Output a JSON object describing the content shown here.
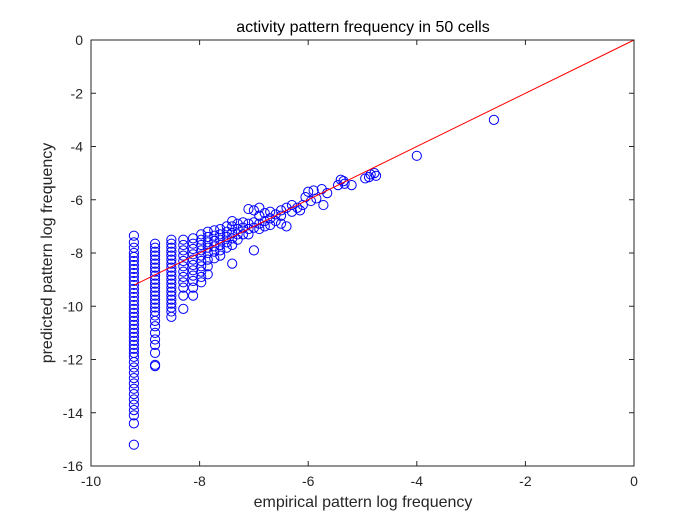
{
  "chart_data": {
    "type": "scatter",
    "title": "activity pattern frequency in 50 cells",
    "xlabel": "empirical pattern log frequency",
    "ylabel": "predicted pattern log frequency",
    "xlim": [
      -10,
      0
    ],
    "ylim": [
      -16,
      0
    ],
    "xticks": [
      -10,
      -8,
      -6,
      -4,
      -2,
      0
    ],
    "yticks": [
      -16,
      -14,
      -12,
      -10,
      -8,
      -6,
      -4,
      -2,
      0
    ],
    "xtick_labels": [
      "-10",
      "-8",
      "-6",
      "-4",
      "-2",
      "0"
    ],
    "ytick_labels": [
      "-16",
      "-14",
      "-12",
      "-10",
      "-8",
      "-6",
      "-4",
      "-2",
      "0"
    ],
    "grid": false,
    "marker_color": "#0000ff",
    "line_color": "#ff0000",
    "reference_line": {
      "x": [
        -9.2,
        0
      ],
      "y": [
        -9.2,
        0
      ]
    },
    "points": [
      [
        -9.21,
        -7.35
      ],
      [
        -9.21,
        -7.6
      ],
      [
        -9.21,
        -7.8
      ],
      [
        -9.21,
        -8.0
      ],
      [
        -9.21,
        -8.15
      ],
      [
        -9.21,
        -8.3
      ],
      [
        -9.21,
        -8.45
      ],
      [
        -9.21,
        -8.6
      ],
      [
        -9.21,
        -8.75
      ],
      [
        -9.21,
        -8.9
      ],
      [
        -9.21,
        -9.05
      ],
      [
        -9.21,
        -9.2
      ],
      [
        -9.21,
        -9.35
      ],
      [
        -9.21,
        -9.5
      ],
      [
        -9.21,
        -9.65
      ],
      [
        -9.21,
        -9.8
      ],
      [
        -9.21,
        -9.95
      ],
      [
        -9.21,
        -10.1
      ],
      [
        -9.21,
        -10.25
      ],
      [
        -9.21,
        -10.4
      ],
      [
        -9.21,
        -10.55
      ],
      [
        -9.21,
        -10.7
      ],
      [
        -9.21,
        -10.85
      ],
      [
        -9.21,
        -11.0
      ],
      [
        -9.21,
        -11.15
      ],
      [
        -9.21,
        -11.3
      ],
      [
        -9.21,
        -11.45
      ],
      [
        -9.21,
        -11.6
      ],
      [
        -9.21,
        -11.75
      ],
      [
        -9.21,
        -11.9
      ],
      [
        -9.21,
        -12.1
      ],
      [
        -9.21,
        -12.3
      ],
      [
        -9.21,
        -12.5
      ],
      [
        -9.21,
        -12.7
      ],
      [
        -9.21,
        -12.9
      ],
      [
        -9.21,
        -13.1
      ],
      [
        -9.21,
        -13.3
      ],
      [
        -9.21,
        -13.5
      ],
      [
        -9.21,
        -13.7
      ],
      [
        -9.21,
        -13.9
      ],
      [
        -9.21,
        -14.1
      ],
      [
        -9.21,
        -14.4
      ],
      [
        -9.21,
        -15.2
      ],
      [
        -8.82,
        -7.65
      ],
      [
        -8.82,
        -7.8
      ],
      [
        -8.82,
        -7.95
      ],
      [
        -8.82,
        -8.1
      ],
      [
        -8.82,
        -8.25
      ],
      [
        -8.82,
        -8.4
      ],
      [
        -8.82,
        -8.55
      ],
      [
        -8.82,
        -8.7
      ],
      [
        -8.82,
        -8.85
      ],
      [
        -8.82,
        -9.0
      ],
      [
        -8.82,
        -9.15
      ],
      [
        -8.82,
        -9.3
      ],
      [
        -8.82,
        -9.45
      ],
      [
        -8.82,
        -9.6
      ],
      [
        -8.82,
        -9.75
      ],
      [
        -8.82,
        -9.9
      ],
      [
        -8.82,
        -10.05
      ],
      [
        -8.82,
        -10.2
      ],
      [
        -8.82,
        -10.35
      ],
      [
        -8.82,
        -10.55
      ],
      [
        -8.82,
        -10.75
      ],
      [
        -8.82,
        -11.0
      ],
      [
        -8.82,
        -11.25
      ],
      [
        -8.82,
        -11.45
      ],
      [
        -8.82,
        -11.75
      ],
      [
        -8.82,
        -12.2
      ],
      [
        -8.82,
        -12.25
      ],
      [
        -8.52,
        -7.5
      ],
      [
        -8.52,
        -7.65
      ],
      [
        -8.52,
        -7.8
      ],
      [
        -8.52,
        -7.95
      ],
      [
        -8.52,
        -8.1
      ],
      [
        -8.52,
        -8.25
      ],
      [
        -8.52,
        -8.4
      ],
      [
        -8.52,
        -8.55
      ],
      [
        -8.52,
        -8.7
      ],
      [
        -8.52,
        -8.85
      ],
      [
        -8.52,
        -9.0
      ],
      [
        -8.52,
        -9.15
      ],
      [
        -8.52,
        -9.3
      ],
      [
        -8.52,
        -9.45
      ],
      [
        -8.52,
        -9.6
      ],
      [
        -8.52,
        -9.75
      ],
      [
        -8.52,
        -9.9
      ],
      [
        -8.52,
        -10.05
      ],
      [
        -8.52,
        -10.2
      ],
      [
        -8.52,
        -10.4
      ],
      [
        -8.3,
        -7.5
      ],
      [
        -8.3,
        -7.7
      ],
      [
        -8.3,
        -7.9
      ],
      [
        -8.3,
        -8.1
      ],
      [
        -8.3,
        -8.3
      ],
      [
        -8.3,
        -8.5
      ],
      [
        -8.3,
        -8.7
      ],
      [
        -8.3,
        -8.9
      ],
      [
        -8.3,
        -9.1
      ],
      [
        -8.3,
        -9.3
      ],
      [
        -8.3,
        -9.6
      ],
      [
        -8.3,
        -10.1
      ],
      [
        -8.12,
        -7.45
      ],
      [
        -8.12,
        -7.65
      ],
      [
        -8.12,
        -7.85
      ],
      [
        -8.12,
        -8.05
      ],
      [
        -8.12,
        -8.25
      ],
      [
        -8.12,
        -8.45
      ],
      [
        -8.12,
        -8.65
      ],
      [
        -8.12,
        -8.85
      ],
      [
        -8.12,
        -9.05
      ],
      [
        -8.12,
        -9.3
      ],
      [
        -8.12,
        -9.6
      ],
      [
        -7.97,
        -7.3
      ],
      [
        -7.97,
        -7.5
      ],
      [
        -7.97,
        -7.7
      ],
      [
        -7.97,
        -7.9
      ],
      [
        -7.97,
        -8.1
      ],
      [
        -7.97,
        -8.3
      ],
      [
        -7.97,
        -8.5
      ],
      [
        -7.97,
        -8.7
      ],
      [
        -7.97,
        -8.9
      ],
      [
        -7.97,
        -9.1
      ],
      [
        -7.85,
        -7.2
      ],
      [
        -7.85,
        -7.4
      ],
      [
        -7.85,
        -7.6
      ],
      [
        -7.85,
        -7.8
      ],
      [
        -7.85,
        -8.0
      ],
      [
        -7.85,
        -8.25
      ],
      [
        -7.85,
        -8.5
      ],
      [
        -7.85,
        -8.8
      ],
      [
        -7.73,
        -7.15
      ],
      [
        -7.73,
        -7.35
      ],
      [
        -7.73,
        -7.55
      ],
      [
        -7.73,
        -7.75
      ],
      [
        -7.73,
        -7.95
      ],
      [
        -7.73,
        -8.2
      ],
      [
        -7.62,
        -7.1
      ],
      [
        -7.62,
        -7.3
      ],
      [
        -7.62,
        -7.5
      ],
      [
        -7.62,
        -7.7
      ],
      [
        -7.62,
        -7.9
      ],
      [
        -7.62,
        -8.1
      ],
      [
        -7.5,
        -7.0
      ],
      [
        -7.5,
        -7.2
      ],
      [
        -7.5,
        -7.4
      ],
      [
        -7.5,
        -7.6
      ],
      [
        -7.5,
        -7.8
      ],
      [
        -7.4,
        -6.8
      ],
      [
        -7.4,
        -7.0
      ],
      [
        -7.4,
        -7.25
      ],
      [
        -7.4,
        -7.45
      ],
      [
        -7.4,
        -7.7
      ],
      [
        -7.4,
        -8.4
      ],
      [
        -7.3,
        -6.9
      ],
      [
        -7.3,
        -7.1
      ],
      [
        -7.3,
        -7.3
      ],
      [
        -7.3,
        -7.5
      ],
      [
        -7.2,
        -6.85
      ],
      [
        -7.2,
        -7.05
      ],
      [
        -7.2,
        -7.3
      ],
      [
        -7.1,
        -6.35
      ],
      [
        -7.1,
        -6.9
      ],
      [
        -7.1,
        -7.1
      ],
      [
        -7.1,
        -7.3
      ],
      [
        -7.0,
        -6.4
      ],
      [
        -7.0,
        -6.85
      ],
      [
        -7.0,
        -7.05
      ],
      [
        -7.0,
        -7.9
      ],
      [
        -6.9,
        -6.3
      ],
      [
        -6.9,
        -6.6
      ],
      [
        -6.9,
        -6.9
      ],
      [
        -6.9,
        -7.1
      ],
      [
        -6.8,
        -6.5
      ],
      [
        -6.8,
        -6.8
      ],
      [
        -6.8,
        -7.0
      ],
      [
        -6.7,
        -6.45
      ],
      [
        -6.7,
        -6.7
      ],
      [
        -6.7,
        -6.95
      ],
      [
        -6.6,
        -6.55
      ],
      [
        -6.6,
        -6.8
      ],
      [
        -6.5,
        -6.4
      ],
      [
        -6.5,
        -6.6
      ],
      [
        -6.5,
        -6.9
      ],
      [
        -6.4,
        -6.3
      ],
      [
        -6.4,
        -7.0
      ],
      [
        -6.3,
        -6.2
      ],
      [
        -6.3,
        -6.45
      ],
      [
        -6.2,
        -6.3
      ],
      [
        -6.15,
        -6.4
      ],
      [
        -6.05,
        -5.9
      ],
      [
        -6.1,
        -6.2
      ],
      [
        -6.0,
        -5.7
      ],
      [
        -5.95,
        -6.05
      ],
      [
        -5.9,
        -5.65
      ],
      [
        -5.85,
        -5.95
      ],
      [
        -5.75,
        -5.6
      ],
      [
        -5.72,
        -6.2
      ],
      [
        -5.65,
        -5.75
      ],
      [
        -5.45,
        -5.45
      ],
      [
        -5.4,
        -5.25
      ],
      [
        -5.35,
        -5.3
      ],
      [
        -5.33,
        -5.4
      ],
      [
        -5.2,
        -5.45
      ],
      [
        -4.95,
        -5.2
      ],
      [
        -4.88,
        -5.15
      ],
      [
        -4.85,
        -5.05
      ],
      [
        -4.78,
        -5.0
      ],
      [
        -4.75,
        -5.1
      ],
      [
        -4.0,
        -4.35
      ],
      [
        -2.58,
        -3.0
      ]
    ]
  }
}
